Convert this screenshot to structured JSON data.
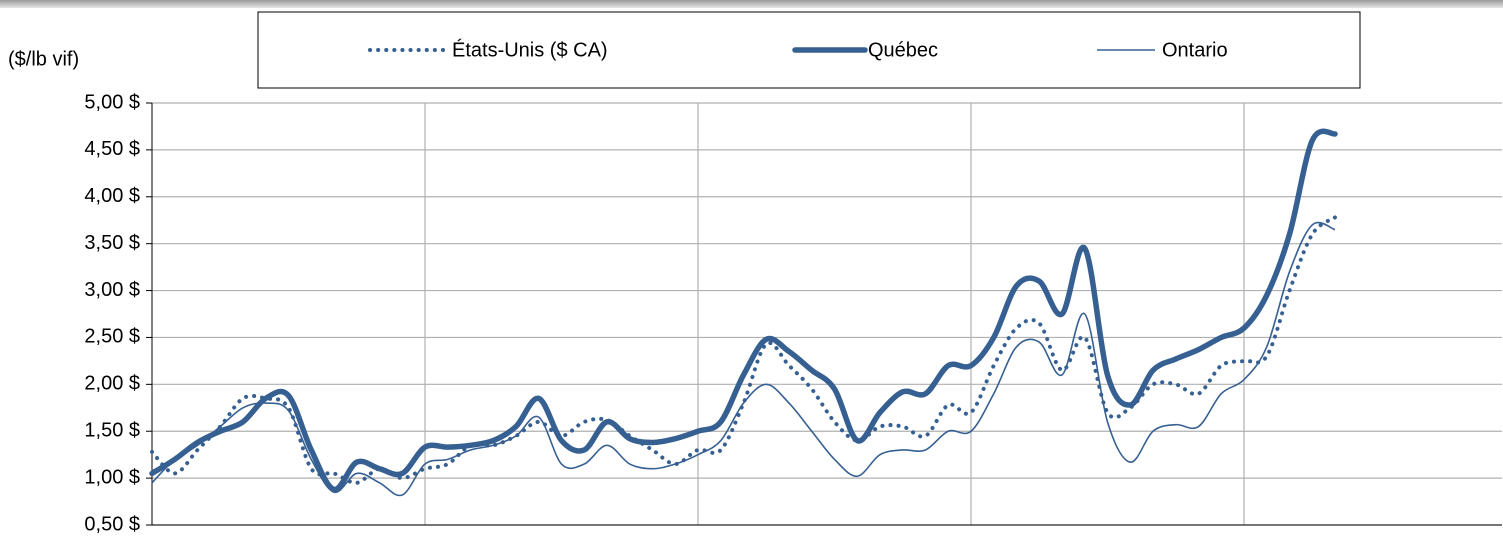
{
  "chart_data": {
    "type": "line",
    "y_axis_label": "($/lb vif)",
    "x": [
      0,
      1,
      2,
      3,
      4,
      5,
      6,
      7,
      8,
      9,
      10,
      11,
      12,
      13,
      14,
      15,
      16,
      17,
      18,
      19,
      20,
      21,
      22,
      23,
      24,
      25,
      26,
      27,
      28,
      29,
      30,
      31,
      32,
      33,
      34,
      35,
      36,
      37,
      38,
      39,
      40,
      41,
      42,
      43,
      44,
      45,
      46,
      47,
      48,
      49,
      50,
      51,
      52
    ],
    "xlim": [
      0,
      60
    ],
    "xticks": [
      12,
      24,
      36,
      48
    ],
    "ylim": [
      0.5,
      5.0
    ],
    "yticks": [
      {
        "value": 0.5,
        "label": "0,50  $"
      },
      {
        "value": 1.0,
        "label": "1,00  $"
      },
      {
        "value": 1.5,
        "label": "1,50  $"
      },
      {
        "value": 2.0,
        "label": "2,00  $"
      },
      {
        "value": 2.5,
        "label": "2,50  $"
      },
      {
        "value": 3.0,
        "label": "3,00  $"
      },
      {
        "value": 3.5,
        "label": "3,50  $"
      },
      {
        "value": 4.0,
        "label": "4,00  $"
      },
      {
        "value": 4.5,
        "label": "4,50  $"
      },
      {
        "value": 5.0,
        "label": "5,00  $"
      }
    ],
    "grid": true,
    "legend": "top",
    "series": [
      {
        "name": "États-Unis ($ CA)",
        "color": "#376092",
        "style": "dotted",
        "values": [
          1.28,
          1.05,
          1.3,
          1.55,
          1.85,
          1.85,
          1.75,
          1.1,
          1.05,
          0.95,
          1.1,
          1.0,
          1.1,
          1.15,
          1.35,
          1.35,
          1.45,
          1.6,
          1.45,
          1.6,
          1.62,
          1.45,
          1.3,
          1.15,
          1.3,
          1.3,
          1.8,
          2.43,
          2.2,
          1.95,
          1.6,
          1.4,
          1.55,
          1.55,
          1.45,
          1.78,
          1.7,
          2.2,
          2.6,
          2.65,
          2.15,
          2.5,
          1.7,
          1.75,
          2.0,
          2.0,
          1.9,
          2.2,
          2.25,
          2.3,
          3.0,
          3.6,
          3.78
        ]
      },
      {
        "name": "Québec",
        "color": "#376092",
        "style": "thick",
        "values": [
          1.05,
          1.2,
          1.38,
          1.5,
          1.6,
          1.85,
          1.88,
          1.3,
          0.88,
          1.17,
          1.1,
          1.05,
          1.33,
          1.33,
          1.35,
          1.4,
          1.55,
          1.85,
          1.4,
          1.3,
          1.6,
          1.42,
          1.38,
          1.42,
          1.5,
          1.6,
          2.1,
          2.48,
          2.35,
          2.15,
          1.95,
          1.4,
          1.7,
          1.92,
          1.9,
          2.2,
          2.2,
          2.5,
          3.05,
          3.1,
          2.75,
          3.45,
          2.1,
          1.78,
          2.15,
          2.27,
          2.37,
          2.5,
          2.6,
          2.95,
          3.6,
          4.6,
          4.67
        ]
      },
      {
        "name": "Ontario",
        "color": "#376092",
        "style": "thin",
        "values": [
          0.95,
          1.2,
          1.35,
          1.55,
          1.75,
          1.8,
          1.72,
          1.2,
          0.85,
          1.05,
          0.95,
          0.82,
          1.15,
          1.2,
          1.3,
          1.35,
          1.45,
          1.65,
          1.15,
          1.15,
          1.35,
          1.15,
          1.1,
          1.15,
          1.25,
          1.4,
          1.8,
          2.0,
          1.8,
          1.5,
          1.2,
          1.02,
          1.25,
          1.3,
          1.3,
          1.5,
          1.5,
          1.9,
          2.4,
          2.45,
          2.1,
          2.75,
          1.6,
          1.17,
          1.5,
          1.57,
          1.55,
          1.9,
          2.05,
          2.4,
          3.2,
          3.7,
          3.65
        ]
      }
    ]
  }
}
